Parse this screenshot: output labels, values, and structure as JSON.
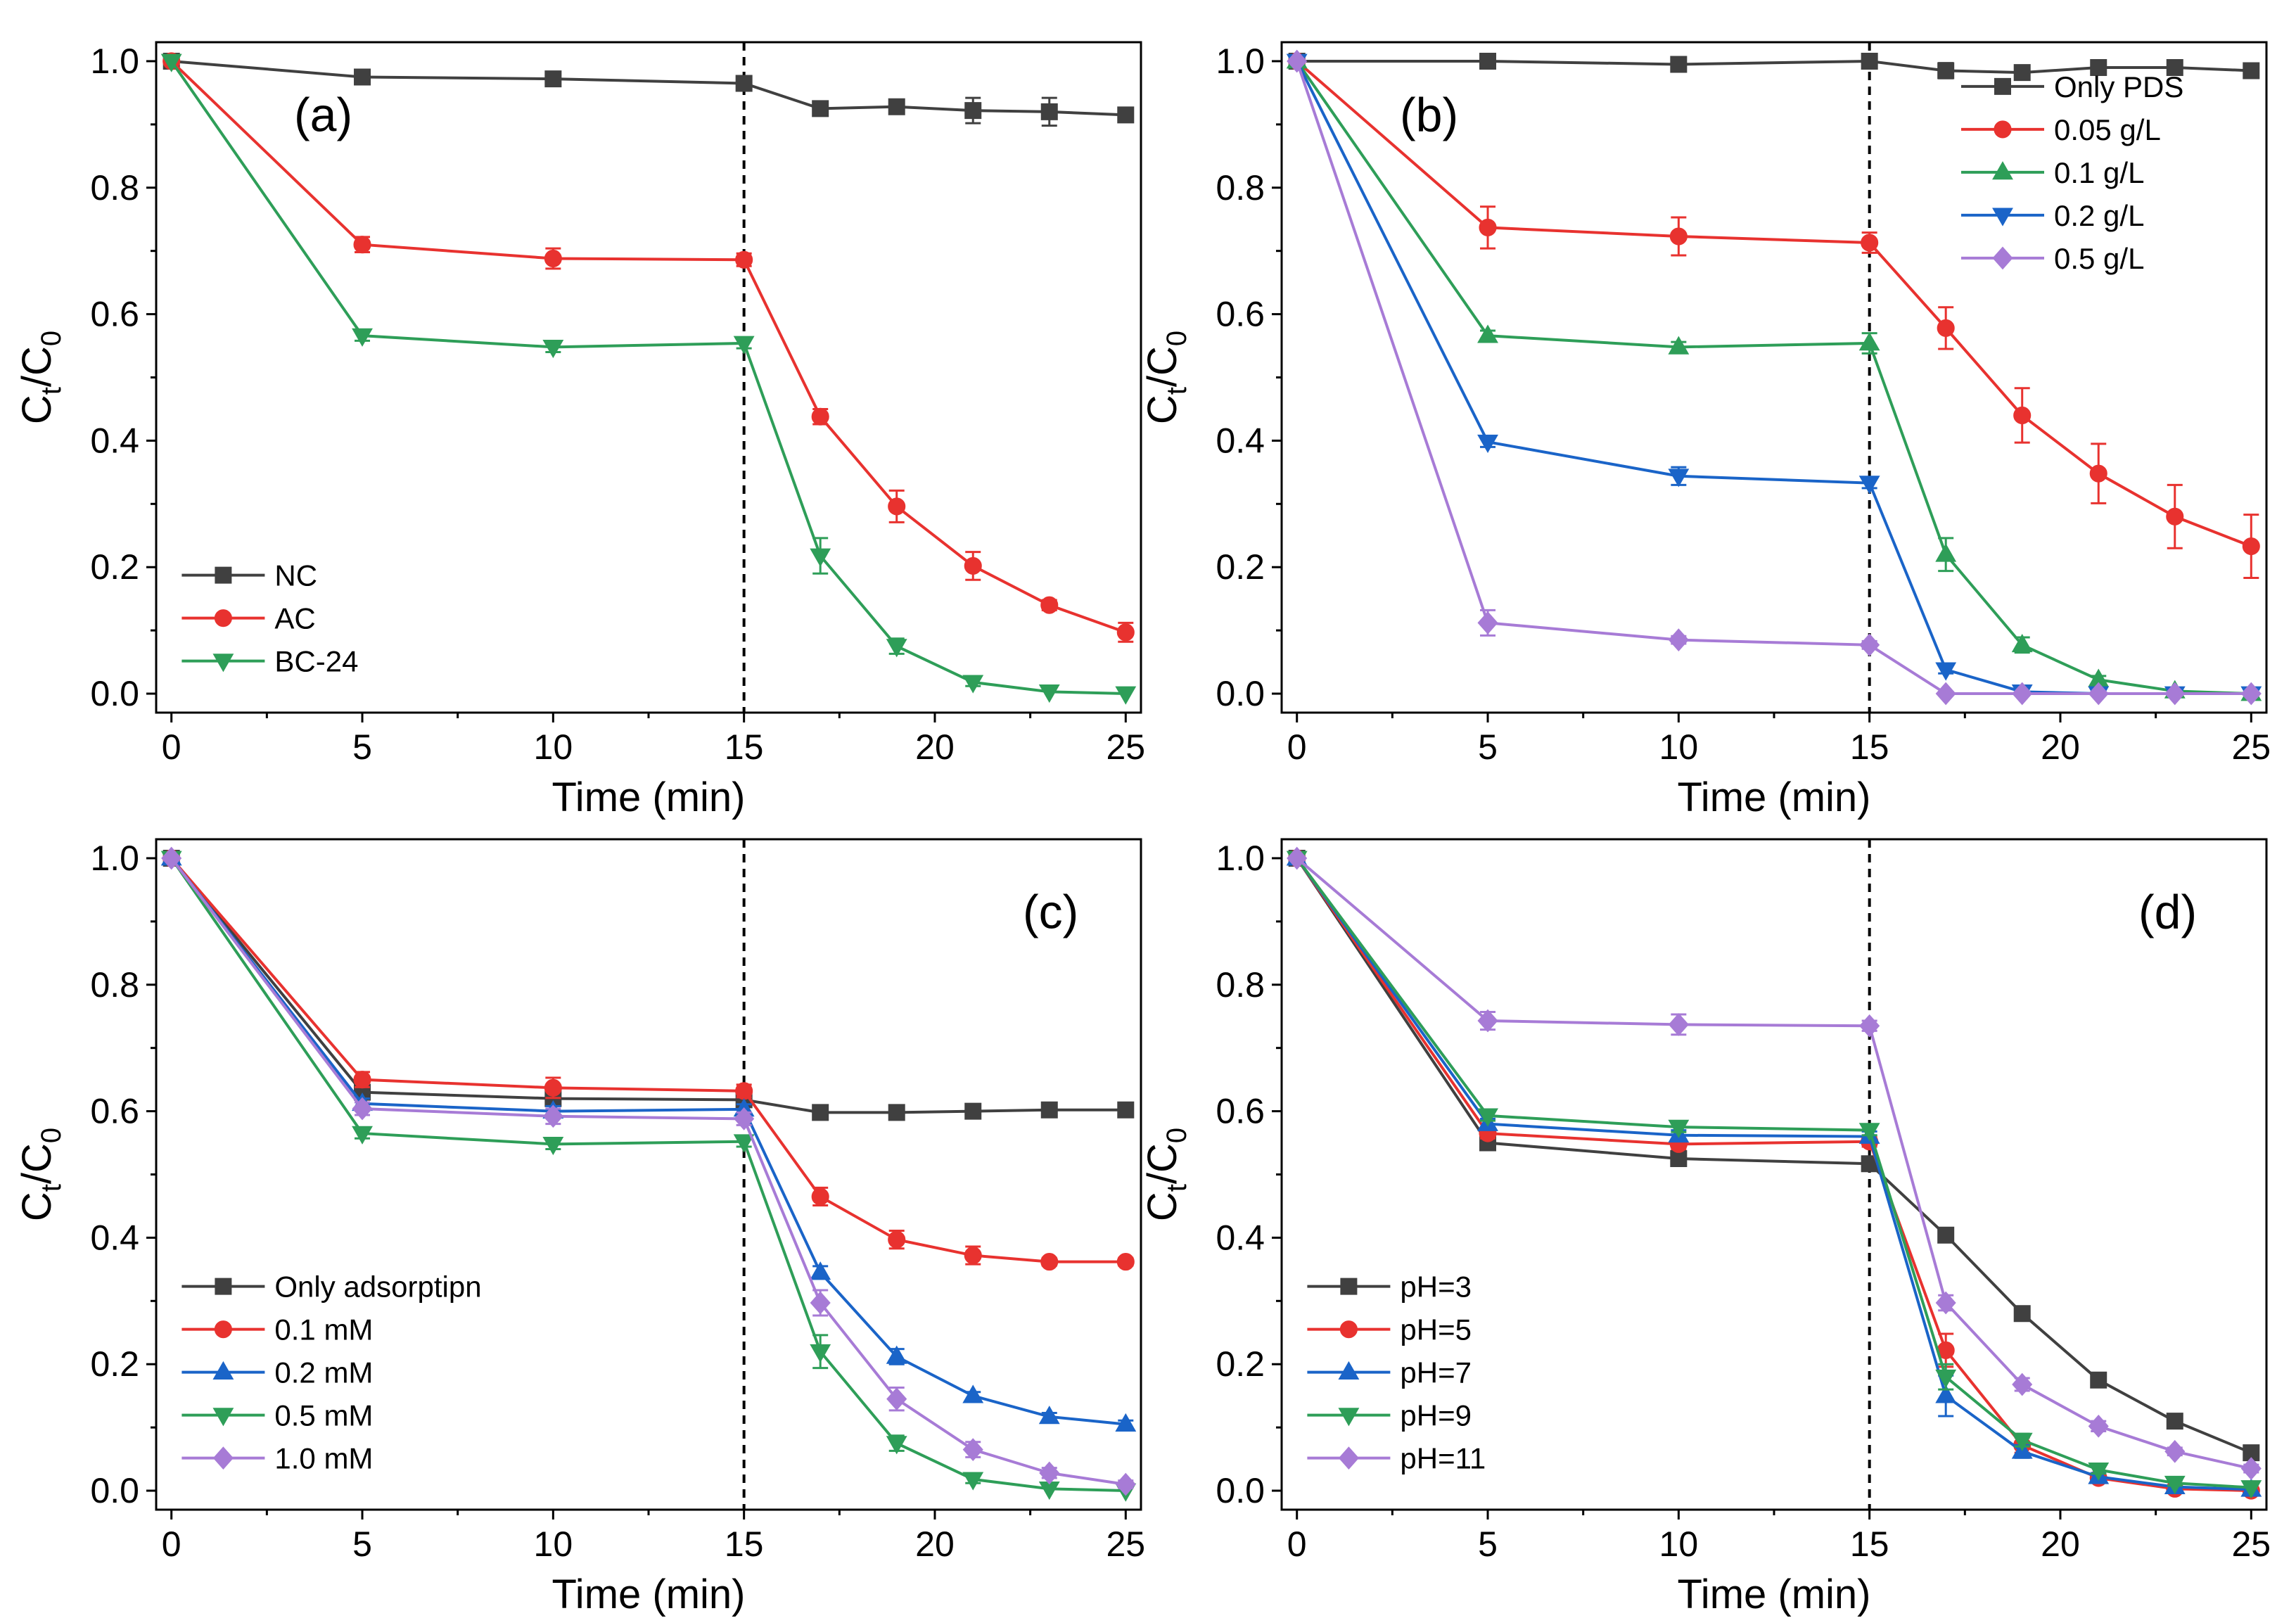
{
  "chart_data": [
    {
      "type": "line",
      "panel_label": "(a)",
      "xlabel": "Time (min)",
      "ylabel_main": "C",
      "ylabel_sub1": "t",
      "ylabel_sep": "/C",
      "ylabel_sub2": "0",
      "xlim": [
        -0.4,
        25.4
      ],
      "ylim": [
        -0.03,
        1.03
      ],
      "xticks": [
        "0",
        "5",
        "10",
        "15",
        "20",
        "25"
      ],
      "yticks": [
        "0.0",
        "0.2",
        "0.4",
        "0.6",
        "0.8",
        "1.0"
      ],
      "vline_x": 15,
      "legend_position": "lower-left",
      "x": [
        0,
        5,
        10,
        15,
        17,
        19,
        21,
        23,
        25
      ],
      "series": [
        {
          "name": "NC",
          "color": "#404040",
          "marker": "square",
          "values": [
            1.0,
            0.975,
            0.972,
            0.965,
            0.925,
            0.928,
            0.922,
            0.92,
            0.915
          ],
          "errors": [
            0,
            0.006,
            0.006,
            0.008,
            0.008,
            0.008,
            0.02,
            0.022,
            0.01
          ]
        },
        {
          "name": "AC",
          "color": "#e8322f",
          "marker": "circle",
          "values": [
            1.0,
            0.71,
            0.688,
            0.686,
            0.438,
            0.296,
            0.202,
            0.14,
            0.097
          ],
          "errors": [
            0,
            0.012,
            0.016,
            0.01,
            0.012,
            0.025,
            0.022,
            0.008,
            0.015
          ]
        },
        {
          "name": "BC-24",
          "color": "#2e9e58",
          "marker": "triangle-down",
          "values": [
            1.0,
            0.566,
            0.548,
            0.554,
            0.218,
            0.075,
            0.018,
            0.003,
            0.0
          ],
          "errors": [
            0,
            0.008,
            0.008,
            0.008,
            0.028,
            0.012,
            0.006,
            0.003,
            0.002
          ]
        }
      ]
    },
    {
      "type": "line",
      "panel_label": "(b)",
      "xlabel": "Time (min)",
      "ylabel_main": "C",
      "ylabel_sub1": "t",
      "ylabel_sep": "/C",
      "ylabel_sub2": "0",
      "xlim": [
        -0.4,
        25.4
      ],
      "ylim": [
        -0.03,
        1.03
      ],
      "xticks": [
        "0",
        "5",
        "10",
        "15",
        "20",
        "25"
      ],
      "yticks": [
        "0.0",
        "0.2",
        "0.4",
        "0.6",
        "0.8",
        "1.0"
      ],
      "vline_x": 15,
      "legend_position": "upper-right",
      "x": [
        0,
        5,
        10,
        15,
        17,
        19,
        21,
        23,
        25
      ],
      "series": [
        {
          "name": "Only PDS",
          "color": "#404040",
          "marker": "square",
          "values": [
            1.0,
            1.0,
            0.995,
            1.0,
            0.985,
            0.982,
            0.99,
            0.99,
            0.985
          ],
          "errors": [
            0,
            0.004,
            0.004,
            0.006,
            0.012,
            0.01,
            0.008,
            0.006,
            0.006
          ]
        },
        {
          "name": "0.05 g/L",
          "color": "#e8322f",
          "marker": "circle",
          "values": [
            1.0,
            0.737,
            0.723,
            0.713,
            0.578,
            0.44,
            0.348,
            0.28,
            0.233
          ],
          "errors": [
            0,
            0.033,
            0.03,
            0.016,
            0.033,
            0.043,
            0.047,
            0.05,
            0.05
          ]
        },
        {
          "name": "0.1 g/L",
          "color": "#2e9e58",
          "marker": "triangle-up",
          "values": [
            1.0,
            0.566,
            0.548,
            0.554,
            0.22,
            0.077,
            0.022,
            0.004,
            0.0
          ],
          "errors": [
            0,
            0.008,
            0.008,
            0.016,
            0.026,
            0.012,
            0.006,
            0.003,
            0.002
          ]
        },
        {
          "name": "0.2 g/L",
          "color": "#1a64c8",
          "marker": "triangle-down",
          "values": [
            1.0,
            0.398,
            0.344,
            0.333,
            0.038,
            0.003,
            0.0,
            0.0,
            0.0
          ],
          "errors": [
            0,
            0.008,
            0.014,
            0.008,
            0.006,
            0.003,
            0.002,
            0.002,
            0.002
          ]
        },
        {
          "name": "0.5 g/L",
          "color": "#a77bd6",
          "marker": "diamond",
          "values": [
            1.0,
            0.112,
            0.085,
            0.077,
            0.0,
            0.0,
            0.0,
            0.0,
            0.0
          ],
          "errors": [
            0,
            0.02,
            0.006,
            0.006,
            0.003,
            0.002,
            0.002,
            0.002,
            0.002
          ]
        }
      ]
    },
    {
      "type": "line",
      "panel_label": "(c)",
      "xlabel": "Time (min)",
      "ylabel_main": "C",
      "ylabel_sub1": "t",
      "ylabel_sep": "/C",
      "ylabel_sub2": "0",
      "xlim": [
        -0.4,
        25.4
      ],
      "ylim": [
        -0.03,
        1.03
      ],
      "xticks": [
        "0",
        "5",
        "10",
        "15",
        "20",
        "25"
      ],
      "yticks": [
        "0.0",
        "0.2",
        "0.4",
        "0.6",
        "0.8",
        "1.0"
      ],
      "vline_x": 15,
      "legend_position": "lower-left",
      "x": [
        0,
        5,
        10,
        15,
        17,
        19,
        21,
        23,
        25
      ],
      "series": [
        {
          "name": "Only adsorptipn",
          "color": "#404040",
          "marker": "square",
          "values": [
            1.0,
            0.63,
            0.62,
            0.618,
            0.598,
            0.598,
            0.6,
            0.602,
            0.602
          ],
          "errors": [
            0,
            0.006,
            0.006,
            0.006,
            0.006,
            0.006,
            0.006,
            0.006,
            0.006
          ]
        },
        {
          "name": "0.1 mM",
          "color": "#e8322f",
          "marker": "circle",
          "values": [
            1.0,
            0.65,
            0.637,
            0.632,
            0.465,
            0.397,
            0.372,
            0.362,
            0.362
          ],
          "errors": [
            0,
            0.012,
            0.016,
            0.01,
            0.014,
            0.014,
            0.014,
            0.006,
            0.006
          ]
        },
        {
          "name": "0.2 mM",
          "color": "#1a64c8",
          "marker": "triangle-up",
          "values": [
            1.0,
            0.612,
            0.6,
            0.603,
            0.345,
            0.212,
            0.15,
            0.117,
            0.105
          ],
          "errors": [
            0,
            0.008,
            0.008,
            0.008,
            0.01,
            0.012,
            0.006,
            0.006,
            0.006
          ]
        },
        {
          "name": "0.5 mM",
          "color": "#2e9e58",
          "marker": "triangle-down",
          "values": [
            1.0,
            0.565,
            0.548,
            0.552,
            0.22,
            0.075,
            0.018,
            0.003,
            0.0
          ],
          "errors": [
            0,
            0.008,
            0.008,
            0.008,
            0.026,
            0.012,
            0.006,
            0.003,
            0.002
          ]
        },
        {
          "name": "1.0 mM",
          "color": "#a77bd6",
          "marker": "diamond",
          "values": [
            1.0,
            0.604,
            0.592,
            0.588,
            0.297,
            0.145,
            0.065,
            0.028,
            0.01
          ],
          "errors": [
            0,
            0.01,
            0.012,
            0.01,
            0.02,
            0.018,
            0.012,
            0.008,
            0.006
          ]
        }
      ]
    },
    {
      "type": "line",
      "panel_label": "(d)",
      "xlabel": "Time (min)",
      "ylabel_main": "C",
      "ylabel_sub1": "t",
      "ylabel_sep": "/C",
      "ylabel_sub2": "0",
      "xlim": [
        -0.4,
        25.4
      ],
      "ylim": [
        -0.03,
        1.03
      ],
      "xticks": [
        "0",
        "5",
        "10",
        "15",
        "20",
        "25"
      ],
      "yticks": [
        "0.0",
        "0.2",
        "0.4",
        "0.6",
        "0.8",
        "1.0"
      ],
      "vline_x": 15,
      "legend_position": "lower-left",
      "x": [
        0,
        5,
        10,
        15,
        17,
        19,
        21,
        23,
        25
      ],
      "series": [
        {
          "name": "pH=3",
          "color": "#404040",
          "marker": "square",
          "values": [
            1.0,
            0.55,
            0.525,
            0.517,
            0.404,
            0.28,
            0.175,
            0.11,
            0.06
          ],
          "errors": [
            0,
            0.006,
            0.006,
            0.006,
            0.006,
            0.006,
            0.006,
            0.006,
            0.006
          ]
        },
        {
          "name": "pH=5",
          "color": "#e8322f",
          "marker": "circle",
          "values": [
            1.0,
            0.565,
            0.548,
            0.552,
            0.222,
            0.072,
            0.02,
            0.003,
            0.0
          ],
          "errors": [
            0,
            0.008,
            0.008,
            0.008,
            0.026,
            0.012,
            0.006,
            0.003,
            0.002
          ]
        },
        {
          "name": "pH=7",
          "color": "#1a64c8",
          "marker": "triangle-up",
          "values": [
            1.0,
            0.58,
            0.562,
            0.56,
            0.15,
            0.062,
            0.022,
            0.006,
            0.002
          ],
          "errors": [
            0,
            0.008,
            0.008,
            0.008,
            0.032,
            0.01,
            0.006,
            0.003,
            0.002
          ]
        },
        {
          "name": "pH=9",
          "color": "#2e9e58",
          "marker": "triangle-down",
          "values": [
            1.0,
            0.593,
            0.575,
            0.57,
            0.18,
            0.08,
            0.033,
            0.012,
            0.005
          ],
          "errors": [
            0,
            0.008,
            0.008,
            0.008,
            0.02,
            0.01,
            0.006,
            0.004,
            0.003
          ]
        },
        {
          "name": "pH=11",
          "color": "#a77bd6",
          "marker": "diamond",
          "values": [
            1.0,
            0.743,
            0.737,
            0.735,
            0.297,
            0.168,
            0.102,
            0.062,
            0.035
          ],
          "errors": [
            0,
            0.014,
            0.016,
            0.008,
            0.012,
            0.01,
            0.008,
            0.006,
            0.006
          ]
        }
      ]
    }
  ]
}
